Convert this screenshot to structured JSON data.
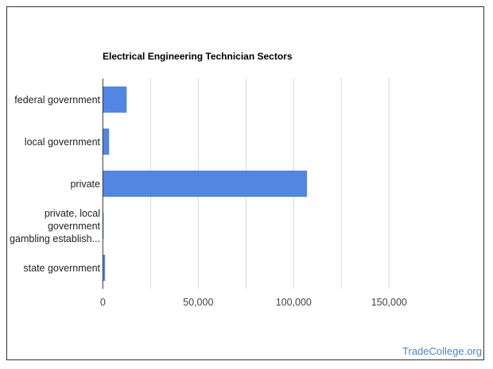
{
  "chart_data": {
    "type": "bar",
    "orientation": "horizontal",
    "title": "Electrical Engineering Technician Sectors",
    "categories": [
      [
        "federal government"
      ],
      [
        "local government"
      ],
      [
        "private"
      ],
      [
        "private, local",
        "government",
        "gambling establish..."
      ],
      [
        "state government"
      ]
    ],
    "values": [
      12500,
      3300,
      107000,
      300,
      1200
    ],
    "xlim": [
      0,
      175000
    ],
    "xticks": [
      0,
      50000,
      100000,
      150000
    ],
    "xtick_labels": [
      "0",
      "50,000",
      "100,000",
      "150,000"
    ],
    "gridlines": [
      25000,
      50000,
      75000,
      100000,
      125000,
      150000
    ],
    "grid": true,
    "legend": "none",
    "bar_color": "#5286e3"
  },
  "watermark": "TradeCollege.org"
}
